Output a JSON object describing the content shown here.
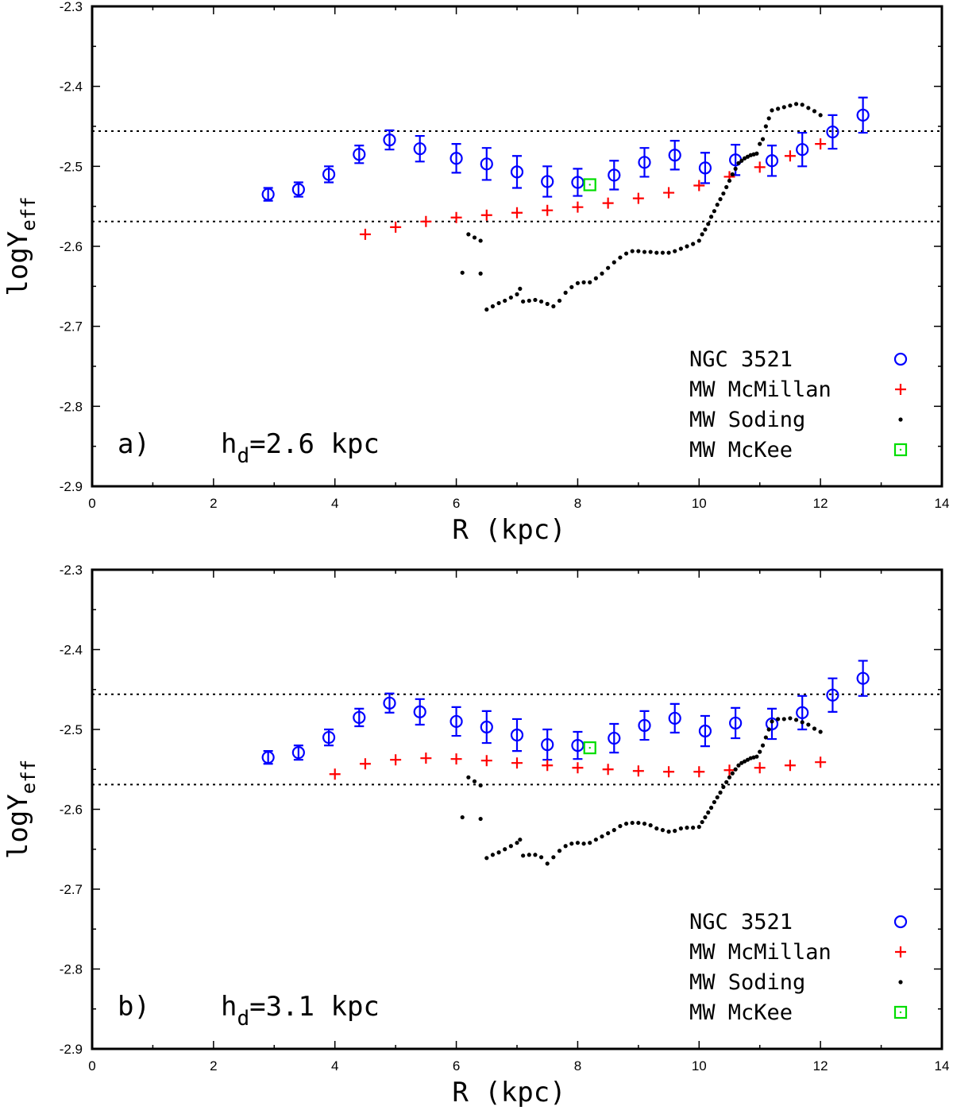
{
  "chart_data": [
    {
      "type": "scatter",
      "panel_label": "a)",
      "hd_sym": "h",
      "hd_sub": "d",
      "hd_value": "=2.6 kpc",
      "xlabel": "R   (kpc)",
      "ylabel_main": "logY",
      "ylabel_sub": "eff",
      "xlim": [
        0,
        14
      ],
      "ylim": [
        -2.9,
        -2.3
      ],
      "xticks": [
        0,
        2,
        4,
        6,
        8,
        10,
        12,
        14
      ],
      "xtick_labels": [
        "0",
        "2",
        "4",
        "6",
        "8",
        "10",
        "12",
        "14"
      ],
      "yticks": [
        -2.9,
        -2.8,
        -2.7,
        -2.6,
        -2.5,
        -2.4,
        -2.3
      ],
      "ytick_labels": [
        "-2.9",
        "-2.8",
        "-2.7",
        "-2.6",
        "-2.5",
        "-2.4",
        "-2.3"
      ],
      "hlines": [
        -2.456,
        -2.569
      ],
      "legend_position": "bottom-right",
      "series": [
        {
          "name": "NGC 3521",
          "marker": "circle",
          "color": "#0000ff",
          "x": [
            2.9,
            3.4,
            3.9,
            4.4,
            4.9,
            5.4,
            6.0,
            6.5,
            7.0,
            7.5,
            8.0,
            8.6,
            9.1,
            9.6,
            10.1,
            10.6,
            11.2,
            11.7,
            12.2,
            12.7
          ],
          "y": [
            -2.535,
            -2.529,
            -2.51,
            -2.485,
            -2.467,
            -2.478,
            -2.49,
            -2.497,
            -2.507,
            -2.519,
            -2.52,
            -2.511,
            -2.495,
            -2.486,
            -2.502,
            -2.492,
            -2.493,
            -2.479,
            -2.457,
            -2.436
          ],
          "err": [
            0.008,
            0.009,
            0.01,
            0.011,
            0.012,
            0.016,
            0.018,
            0.02,
            0.02,
            0.019,
            0.017,
            0.018,
            0.018,
            0.018,
            0.019,
            0.019,
            0.019,
            0.021,
            0.021,
            0.022
          ]
        },
        {
          "name": "MW McMillan",
          "marker": "plus",
          "color": "#ff0000",
          "x": [
            4.5,
            5.0,
            5.5,
            6.0,
            6.5,
            7.0,
            7.5,
            8.0,
            8.5,
            9.0,
            9.5,
            10.0,
            10.5,
            11.0,
            11.5,
            12.0
          ],
          "y": [
            -2.585,
            -2.576,
            -2.569,
            -2.564,
            -2.561,
            -2.558,
            -2.555,
            -2.551,
            -2.546,
            -2.54,
            -2.533,
            -2.524,
            -2.513,
            -2.501,
            -2.487,
            -2.472
          ]
        },
        {
          "name": "MW Soding",
          "marker": "dot",
          "color": "#000000",
          "x": [
            6.2,
            6.3,
            6.4,
            6.1,
            6.4,
            6.5,
            6.6,
            6.7,
            6.8,
            6.9,
            7.0,
            7.05,
            7.1,
            7.2,
            7.3,
            7.4,
            7.5,
            7.6,
            7.7,
            7.8,
            7.9,
            8.0,
            8.1,
            8.2,
            8.3,
            8.4,
            8.5,
            8.6,
            8.7,
            8.8,
            8.9,
            9.0,
            9.1,
            9.2,
            9.3,
            9.4,
            9.5,
            9.6,
            9.7,
            9.8,
            9.9,
            10.0,
            10.05,
            10.1,
            10.15,
            10.2,
            10.25,
            10.3,
            10.35,
            10.4,
            10.45,
            10.5,
            10.55,
            10.6,
            10.65,
            10.7,
            10.75,
            10.8,
            10.85,
            10.9,
            10.95,
            11.0,
            11.05,
            11.1,
            11.15,
            11.2,
            11.3,
            11.4,
            11.5,
            11.6,
            11.7,
            11.8,
            11.9,
            12.0
          ],
          "y": [
            -2.585,
            -2.589,
            -2.593,
            -2.633,
            -2.634,
            -2.679,
            -2.675,
            -2.671,
            -2.668,
            -2.664,
            -2.66,
            -2.653,
            -2.669,
            -2.668,
            -2.667,
            -2.669,
            -2.672,
            -2.675,
            -2.668,
            -2.658,
            -2.651,
            -2.646,
            -2.645,
            -2.645,
            -2.64,
            -2.634,
            -2.627,
            -2.62,
            -2.614,
            -2.609,
            -2.606,
            -2.606,
            -2.607,
            -2.607,
            -2.608,
            -2.608,
            -2.608,
            -2.606,
            -2.603,
            -2.6,
            -2.597,
            -2.593,
            -2.585,
            -2.579,
            -2.572,
            -2.563,
            -2.556,
            -2.548,
            -2.541,
            -2.534,
            -2.526,
            -2.518,
            -2.51,
            -2.503,
            -2.496,
            -2.493,
            -2.49,
            -2.488,
            -2.486,
            -2.485,
            -2.484,
            -2.472,
            -2.466,
            -2.45,
            -2.44,
            -2.43,
            -2.428,
            -2.426,
            -2.424,
            -2.422,
            -2.423,
            -2.427,
            -2.431,
            -2.436
          ]
        },
        {
          "name": "MW McKee",
          "marker": "square",
          "color": "#00dd00",
          "x": [
            8.2
          ],
          "y": [
            -2.523
          ]
        }
      ]
    },
    {
      "type": "scatter",
      "panel_label": "b)",
      "hd_sym": "h",
      "hd_sub": "d",
      "hd_value": "=3.1 kpc",
      "xlabel": "R   (kpc)",
      "ylabel_main": "logY",
      "ylabel_sub": "eff",
      "xlim": [
        0,
        14
      ],
      "ylim": [
        -2.9,
        -2.3
      ],
      "xticks": [
        0,
        2,
        4,
        6,
        8,
        10,
        12,
        14
      ],
      "xtick_labels": [
        "0",
        "2",
        "4",
        "6",
        "8",
        "10",
        "12",
        "14"
      ],
      "yticks": [
        -2.9,
        -2.8,
        -2.7,
        -2.6,
        -2.5,
        -2.4,
        -2.3
      ],
      "ytick_labels": [
        "-2.9",
        "-2.8",
        "-2.7",
        "-2.6",
        "-2.5",
        "-2.4",
        "-2.3"
      ],
      "hlines": [
        -2.456,
        -2.569
      ],
      "legend_position": "bottom-right",
      "series": [
        {
          "name": "NGC 3521",
          "marker": "circle",
          "color": "#0000ff",
          "x": [
            2.9,
            3.4,
            3.9,
            4.4,
            4.9,
            5.4,
            6.0,
            6.5,
            7.0,
            7.5,
            8.0,
            8.6,
            9.1,
            9.6,
            10.1,
            10.6,
            11.2,
            11.7,
            12.2,
            12.7
          ],
          "y": [
            -2.535,
            -2.529,
            -2.51,
            -2.485,
            -2.467,
            -2.478,
            -2.49,
            -2.497,
            -2.507,
            -2.519,
            -2.52,
            -2.511,
            -2.495,
            -2.486,
            -2.502,
            -2.492,
            -2.493,
            -2.479,
            -2.457,
            -2.436
          ],
          "err": [
            0.008,
            0.009,
            0.01,
            0.011,
            0.012,
            0.016,
            0.018,
            0.02,
            0.02,
            0.019,
            0.017,
            0.018,
            0.018,
            0.018,
            0.019,
            0.019,
            0.019,
            0.021,
            0.021,
            0.022
          ]
        },
        {
          "name": "MW McMillan",
          "marker": "plus",
          "color": "#ff0000",
          "x": [
            4.0,
            4.5,
            5.0,
            5.5,
            6.0,
            6.5,
            7.0,
            7.5,
            8.0,
            8.5,
            9.0,
            9.5,
            10.0,
            10.5,
            11.0,
            11.5,
            12.0
          ],
          "y": [
            -2.556,
            -2.543,
            -2.538,
            -2.536,
            -2.537,
            -2.539,
            -2.542,
            -2.545,
            -2.548,
            -2.55,
            -2.552,
            -2.553,
            -2.553,
            -2.551,
            -2.548,
            -2.545,
            -2.541
          ]
        },
        {
          "name": "MW Soding",
          "marker": "dot",
          "color": "#000000",
          "x": [
            6.2,
            6.3,
            6.4,
            6.1,
            6.4,
            6.5,
            6.6,
            6.7,
            6.8,
            6.9,
            7.0,
            7.05,
            7.1,
            7.2,
            7.3,
            7.4,
            7.5,
            7.6,
            7.7,
            7.8,
            7.9,
            8.0,
            8.1,
            8.2,
            8.3,
            8.4,
            8.5,
            8.6,
            8.7,
            8.8,
            8.9,
            9.0,
            9.1,
            9.2,
            9.3,
            9.4,
            9.5,
            9.6,
            9.7,
            9.8,
            9.9,
            10.0,
            10.05,
            10.1,
            10.15,
            10.2,
            10.25,
            10.3,
            10.35,
            10.4,
            10.45,
            10.5,
            10.55,
            10.6,
            10.65,
            10.7,
            10.75,
            10.8,
            10.85,
            10.9,
            10.95,
            11.0,
            11.05,
            11.1,
            11.15,
            11.2,
            11.3,
            11.4,
            11.5,
            11.6,
            11.7,
            11.8,
            11.9,
            12.0
          ],
          "y": [
            -2.56,
            -2.565,
            -2.57,
            -2.61,
            -2.612,
            -2.661,
            -2.657,
            -2.654,
            -2.65,
            -2.646,
            -2.642,
            -2.638,
            -2.658,
            -2.657,
            -2.657,
            -2.66,
            -2.668,
            -2.66,
            -2.652,
            -2.646,
            -2.643,
            -2.642,
            -2.643,
            -2.642,
            -2.638,
            -2.634,
            -2.63,
            -2.626,
            -2.621,
            -2.618,
            -2.617,
            -2.617,
            -2.618,
            -2.62,
            -2.624,
            -2.626,
            -2.628,
            -2.627,
            -2.624,
            -2.623,
            -2.623,
            -2.622,
            -2.616,
            -2.61,
            -2.604,
            -2.598,
            -2.591,
            -2.585,
            -2.579,
            -2.572,
            -2.566,
            -2.56,
            -2.555,
            -2.55,
            -2.545,
            -2.542,
            -2.54,
            -2.538,
            -2.536,
            -2.535,
            -2.534,
            -2.528,
            -2.52,
            -2.51,
            -2.5,
            -2.49,
            -2.487,
            -2.487,
            -2.486,
            -2.488,
            -2.491,
            -2.494,
            -2.499,
            -2.503
          ]
        },
        {
          "name": "MW McKee",
          "marker": "square",
          "color": "#00dd00",
          "x": [
            8.2
          ],
          "y": [
            -2.523
          ]
        }
      ]
    }
  ]
}
